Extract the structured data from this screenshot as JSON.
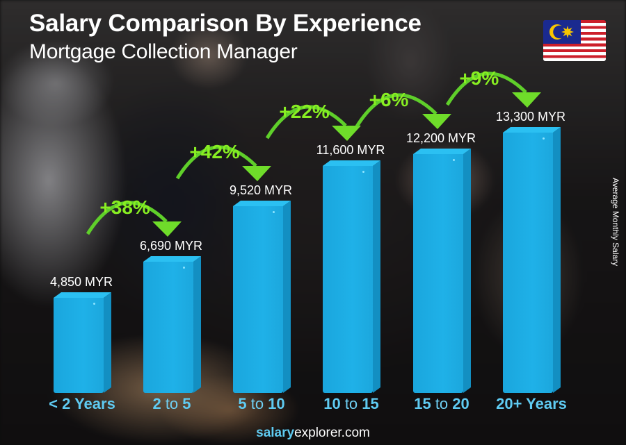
{
  "header": {
    "title": "Salary Comparison By Experience",
    "subtitle": "Mortgage Collection Manager"
  },
  "flag": {
    "country": "Malaysia",
    "icon": "malaysia-flag-icon"
  },
  "axis": {
    "ylabel": "Average Monthly Salary"
  },
  "bars": [
    {
      "category": "< 2 Years",
      "x_parts": [
        {
          "t": "< 2 Years",
          "b": true
        }
      ],
      "value": 4850,
      "label": "4,850 MYR"
    },
    {
      "category": "2 to 5",
      "x_parts": [
        {
          "t": "2",
          "b": true
        },
        {
          "t": " to ",
          "b": false
        },
        {
          "t": "5",
          "b": true
        }
      ],
      "value": 6690,
      "label": "6,690 MYR"
    },
    {
      "category": "5 to 10",
      "x_parts": [
        {
          "t": "5",
          "b": true
        },
        {
          "t": " to ",
          "b": false
        },
        {
          "t": "10",
          "b": true
        }
      ],
      "value": 9520,
      "label": "9,520 MYR"
    },
    {
      "category": "10 to 15",
      "x_parts": [
        {
          "t": "10",
          "b": true
        },
        {
          "t": " to ",
          "b": false
        },
        {
          "t": "15",
          "b": true
        }
      ],
      "value": 11600,
      "label": "11,600 MYR"
    },
    {
      "category": "15 to 20",
      "x_parts": [
        {
          "t": "15",
          "b": true
        },
        {
          "t": " to ",
          "b": false
        },
        {
          "t": "20",
          "b": true
        }
      ],
      "value": 12200,
      "label": "12,200 MYR"
    },
    {
      "category": "20+ Years",
      "x_parts": [
        {
          "t": "20+ Years",
          "b": true
        }
      ],
      "value": 13300,
      "label": "13,300 MYR"
    }
  ],
  "increases": [
    "+38%",
    "+42%",
    "+22%",
    "+6%",
    "+9%"
  ],
  "footer": {
    "brand_bold": "salary",
    "brand_rest": "explorer.com"
  },
  "colors": {
    "bar": "#1fb1e8",
    "bar_side": "#138fc2",
    "bar_top": "#2bc0f2",
    "increase": "#88ee22",
    "xlabel": "#5fcbf2"
  },
  "chart_data": {
    "type": "bar",
    "title": "Salary Comparison By Experience",
    "subtitle": "Mortgage Collection Manager",
    "categories": [
      "< 2 Years",
      "2 to 5",
      "5 to 10",
      "10 to 15",
      "15 to 20",
      "20+ Years"
    ],
    "values": [
      4850,
      6690,
      9520,
      11600,
      12200,
      13300
    ],
    "value_labels": [
      "4,850 MYR",
      "6,690 MYR",
      "9,520 MYR",
      "11,600 MYR",
      "12,200 MYR",
      "13,300 MYR"
    ],
    "annotations": [
      "+38%",
      "+42%",
      "+22%",
      "+6%",
      "+9%"
    ],
    "xlabel": "",
    "ylabel": "Average Monthly Salary",
    "unit": "MYR",
    "grid": false,
    "legend": null
  }
}
